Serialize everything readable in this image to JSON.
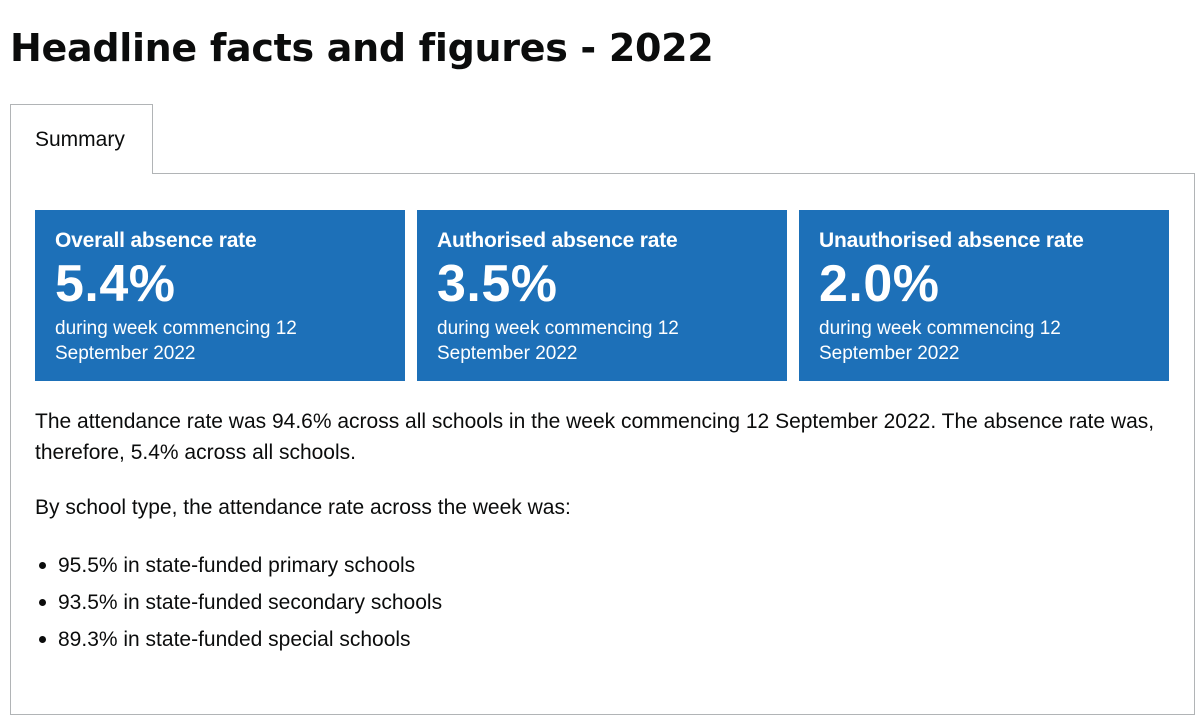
{
  "page": {
    "title": "Headline facts and figures - 2022"
  },
  "tabs": [
    {
      "label": "Summary",
      "selected": true
    }
  ],
  "cards": [
    {
      "title": "Overall absence rate",
      "value": "5.4%",
      "description": "during week commencing 12 September 2022"
    },
    {
      "title": "Authorised absence rate",
      "value": "3.5%",
      "description": "during week commencing 12 September 2022"
    },
    {
      "title": "Unauthorised absence rate",
      "value": "2.0%",
      "description": "during week commencing 12 September 2022"
    }
  ],
  "content": {
    "paragraph_1": "The attendance rate was 94.6% across all schools in the week commencing 12 September 2022. The absence rate was, therefore, 5.4% across all schools.",
    "paragraph_2": "By school type, the attendance rate across the week was:",
    "list": [
      "95.5% in state-funded primary schools",
      "93.5% in state-funded secondary schools",
      "89.3% in state-funded special schools"
    ]
  },
  "colors": {
    "card_background": "#1d70b8",
    "text": "#0b0c0c",
    "border": "#b1b4b6"
  }
}
